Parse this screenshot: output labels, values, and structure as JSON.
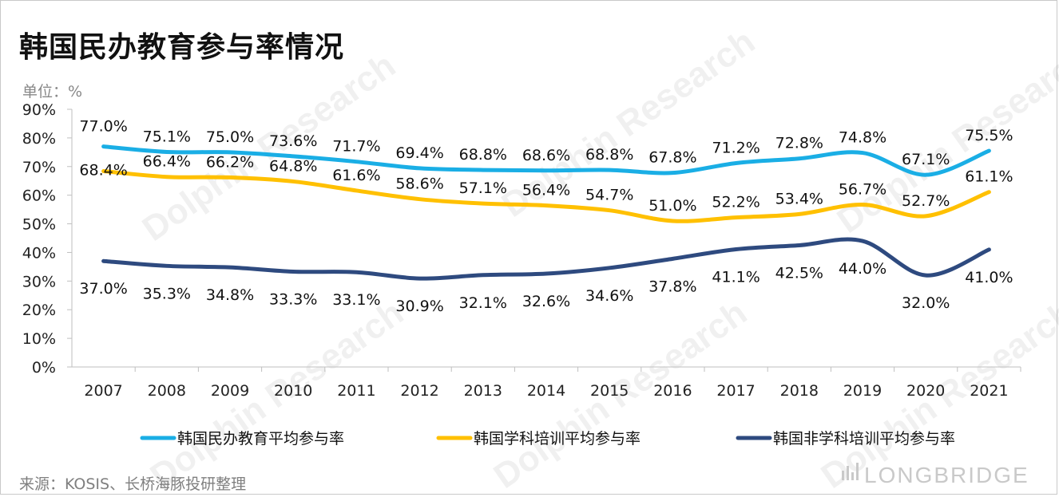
{
  "title": "韩国民办教育参与率情况",
  "unit_label": "单位：%",
  "source": "来源：KOSIS、长桥海豚投研整理",
  "brand": "LONGBRIDGE",
  "watermark": "Dolphin Research",
  "chart_data": {
    "type": "line",
    "x": [
      "2007",
      "2008",
      "2009",
      "2010",
      "2011",
      "2012",
      "2013",
      "2014",
      "2015",
      "2016",
      "2017",
      "2018",
      "2019",
      "2020",
      "2021"
    ],
    "ylim": [
      0,
      90
    ],
    "yticks": [
      "0%",
      "10%",
      "20%",
      "30%",
      "40%",
      "50%",
      "60%",
      "70%",
      "80%",
      "90%"
    ],
    "legend_position": "bottom",
    "grid": false,
    "series": [
      {
        "name": "韩国民办教育平均参与率",
        "color": "#1aaee5",
        "values": [
          77.0,
          75.1,
          75.0,
          73.6,
          71.7,
          69.4,
          68.8,
          68.6,
          68.8,
          67.8,
          71.2,
          72.8,
          74.8,
          67.1,
          75.5
        ],
        "labels": [
          "77.0%",
          "75.1%",
          "75.0%",
          "73.6%",
          "71.7%",
          "69.4%",
          "68.8%",
          "68.6%",
          "68.8%",
          "67.8%",
          "71.2%",
          "72.8%",
          "74.8%",
          "67.1%",
          "75.5%"
        ]
      },
      {
        "name": "韩国学科培训平均参与率",
        "color": "#ffc000",
        "values": [
          68.4,
          66.4,
          66.2,
          64.8,
          61.6,
          58.6,
          57.1,
          56.4,
          54.7,
          51.0,
          52.2,
          53.4,
          56.7,
          52.7,
          61.1
        ],
        "labels": [
          "68.4%",
          "66.4%",
          "66.2%",
          "64.8%",
          "61.6%",
          "58.6%",
          "57.1%",
          "56.4%",
          "54.7%",
          "51.0%",
          "52.2%",
          "53.4%",
          "56.7%",
          "52.7%",
          "61.1%"
        ]
      },
      {
        "name": "韩国非学科培训平均参与率",
        "color": "#2e4a7f",
        "values": [
          37.0,
          35.3,
          34.8,
          33.3,
          33.1,
          30.9,
          32.1,
          32.6,
          34.6,
          37.8,
          41.1,
          42.5,
          44.0,
          32.0,
          41.0
        ],
        "labels": [
          "37.0%",
          "35.3%",
          "34.8%",
          "33.3%",
          "33.1%",
          "30.9%",
          "32.1%",
          "32.6%",
          "34.6%",
          "37.8%",
          "41.1%",
          "42.5%",
          "44.0%",
          "32.0%",
          "41.0%"
        ]
      }
    ]
  }
}
